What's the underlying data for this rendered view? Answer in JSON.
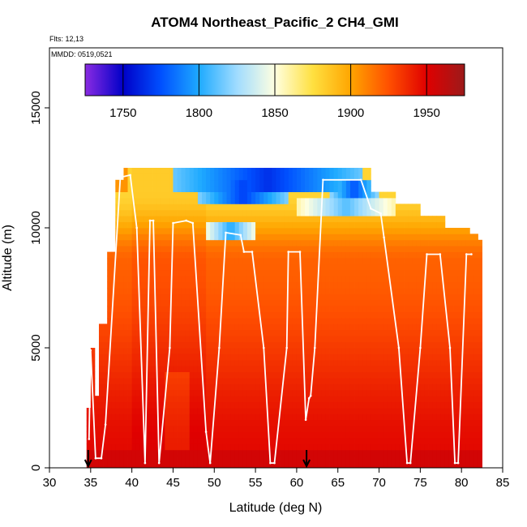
{
  "chart_data": {
    "type": "heatmap",
    "title": "ATOM4 Northeast_Pacific_2 CH4_GMI",
    "flights_text": "Flts: 12,13",
    "mmdd_text": "MMDD: 0519,0521",
    "xlabel": "Latitude (deg N)",
    "ylabel": "Altitude (m)",
    "xlim": [
      30,
      85
    ],
    "ylim": [
      0,
      17500
    ],
    "x_ticks": [
      "30",
      "35",
      "40",
      "45",
      "50",
      "55",
      "60",
      "65",
      "70",
      "75",
      "80",
      "85"
    ],
    "y_ticks": [
      "0",
      "5000",
      "10000",
      "15000"
    ],
    "colorbar": {
      "range": [
        1725,
        1975
      ],
      "ticks": [
        "1750",
        "1800",
        "1850",
        "1900",
        "1950"
      ],
      "colors": [
        "#8a2be2",
        "#0000c8",
        "#0050ff",
        "#1eaaff",
        "#a0dcff",
        "#ffffe0",
        "#ffe040",
        "#ffa500",
        "#ff5000",
        "#e00000",
        "#9c1a1a"
      ]
    },
    "markers": [
      {
        "lat": 34.7,
        "label": "start"
      },
      {
        "lat": 61.2,
        "label": "end"
      }
    ],
    "flight_track": [
      [
        34.8,
        1200
      ],
      [
        35.0,
        4900
      ],
      [
        35.6,
        400
      ],
      [
        36.3,
        400
      ],
      [
        36.8,
        1800
      ],
      [
        38.6,
        12100
      ],
      [
        39.8,
        12200
      ],
      [
        40.6,
        10000
      ],
      [
        41.6,
        200
      ],
      [
        42.2,
        10300
      ],
      [
        42.6,
        10300
      ],
      [
        43.3,
        200
      ],
      [
        44.6,
        5000
      ],
      [
        45.0,
        10200
      ],
      [
        46.6,
        10300
      ],
      [
        47.4,
        10200
      ],
      [
        49.0,
        1500
      ],
      [
        49.5,
        200
      ],
      [
        50.6,
        5000
      ],
      [
        51.4,
        9800
      ],
      [
        53.2,
        9700
      ],
      [
        53.6,
        9000
      ],
      [
        54.6,
        9000
      ],
      [
        56.0,
        5000
      ],
      [
        56.8,
        200
      ],
      [
        57.3,
        200
      ],
      [
        58.8,
        5000
      ],
      [
        59.0,
        9000
      ],
      [
        60.4,
        9000
      ],
      [
        61.1,
        2000
      ],
      [
        61.5,
        2900
      ],
      [
        61.7,
        3000
      ],
      [
        62.2,
        5000
      ],
      [
        63.2,
        12000
      ],
      [
        67.8,
        12000
      ],
      [
        69.0,
        10800
      ],
      [
        70.2,
        10600
      ],
      [
        70.6,
        9600
      ],
      [
        72.4,
        5000
      ],
      [
        73.4,
        200
      ],
      [
        73.8,
        200
      ],
      [
        75.0,
        5000
      ],
      [
        75.8,
        8900
      ],
      [
        77.4,
        8900
      ],
      [
        78.6,
        5000
      ],
      [
        79.2,
        200
      ],
      [
        79.6,
        200
      ],
      [
        80.6,
        8900
      ],
      [
        81.2,
        8900
      ]
    ],
    "heatmap_columns": [
      {
        "lat": 34.5,
        "top": 2500
      },
      {
        "lat": 35.0,
        "top": 5000
      },
      {
        "lat": 35.5,
        "top": 3000
      },
      {
        "lat": 36.0,
        "top": 6000
      },
      {
        "lat": 37.0,
        "top": 9000
      },
      {
        "lat": 38.0,
        "top": 12000
      },
      {
        "lat": 39.0,
        "top": 12500
      },
      {
        "lat": 50.0,
        "top": 12500
      },
      {
        "lat": 68.0,
        "top": 12500
      },
      {
        "lat": 69.0,
        "top": 11500
      },
      {
        "lat": 72.0,
        "top": 11000
      },
      {
        "lat": 75.0,
        "top": 10500
      },
      {
        "lat": 78.0,
        "top": 10000
      },
      {
        "lat": 80.0,
        "top": 9800
      },
      {
        "lat": 81.0,
        "top": 9700
      },
      {
        "lat": 82.0,
        "top": 9500
      }
    ],
    "cold_features": [
      {
        "lat": [
          45,
          68
        ],
        "alt": [
          11600,
          12500
        ],
        "value": 1765
      },
      {
        "lat": [
          48,
          59
        ],
        "alt": [
          11000,
          12000
        ],
        "value": 1770
      },
      {
        "lat": [
          49,
          55
        ],
        "alt": [
          9600,
          10200
        ],
        "value": 1800
      },
      {
        "lat": [
          60,
          72
        ],
        "alt": [
          10500,
          11200
        ],
        "value": 1810
      },
      {
        "lat": [
          64,
          70
        ],
        "alt": [
          11200,
          11900
        ],
        "value": 1775
      }
    ]
  }
}
